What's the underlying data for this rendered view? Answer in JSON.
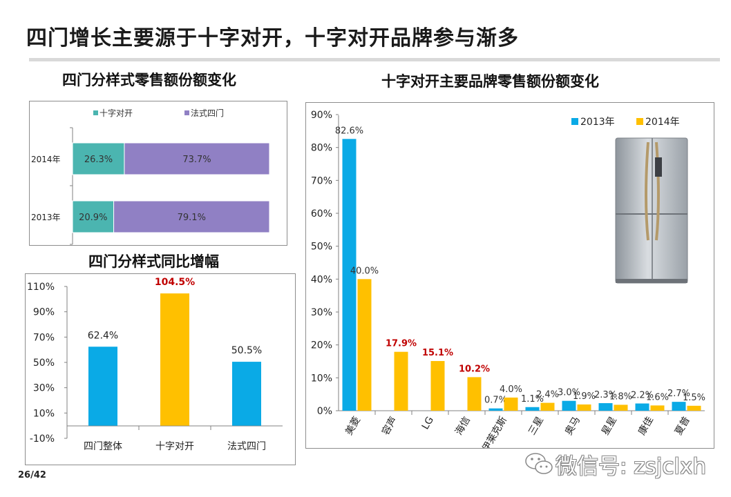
{
  "title": "四门增长主要源于十字对开，十字对开品牌参与渐多",
  "page_number": "26/42",
  "watermark": "微信号: zsjclxh",
  "colors": {
    "teal": "#4bb5b0",
    "purple": "#9080c4",
    "blue": "#0aaae6",
    "orange": "#ffc000",
    "highlight": "#c00000"
  },
  "chart_data": [
    {
      "type": "bar",
      "orientation": "horizontal-stacked-100",
      "title": "四门分样式零售额份额变化",
      "categories": [
        "2014年",
        "2013年"
      ],
      "series": [
        {
          "name": "十字对开",
          "values": [
            26.3,
            20.9
          ],
          "labels": [
            "26.3%",
            "20.9%"
          ]
        },
        {
          "name": "法式四门",
          "values": [
            73.7,
            79.1
          ],
          "labels": [
            "73.7%",
            "79.1%"
          ]
        }
      ],
      "legend": "top"
    },
    {
      "type": "bar",
      "title": "四门分样式同比增幅",
      "categories": [
        "四门整体",
        "十字对开",
        "法式四门"
      ],
      "values": [
        62.4,
        104.5,
        50.5
      ],
      "labels": [
        "62.4%",
        "104.5%",
        "50.5%"
      ],
      "highlight_index": 1,
      "ylim": [
        -10,
        110
      ],
      "yticks": [
        "110%",
        "90%",
        "70%",
        "50%",
        "30%",
        "10%",
        "-10%"
      ]
    },
    {
      "type": "bar",
      "title": "十字对开主要品牌零售额份额变化",
      "categories": [
        "美菱",
        "容声",
        "LG",
        "海信",
        "伊莱克斯",
        "三星",
        "奥马",
        "星星",
        "康佳",
        "夏普"
      ],
      "series": [
        {
          "name": "2013年",
          "values": [
            82.6,
            0,
            0,
            0,
            0.7,
            1.1,
            3.0,
            2.3,
            2.2,
            2.7
          ],
          "labels": [
            "82.6%",
            "",
            "",
            "",
            "0.7%",
            "1.1%",
            "3.0%",
            "2.3%",
            "2.2%",
            "2.7%"
          ]
        },
        {
          "name": "2014年",
          "values": [
            40.0,
            17.9,
            15.1,
            10.2,
            4.0,
            2.4,
            1.9,
            1.8,
            1.6,
            1.5
          ],
          "labels": [
            "40.0%",
            "17.9%",
            "15.1%",
            "10.2%",
            "4.0%",
            "2.4%",
            "1.9%",
            "1.8%",
            "1.6%",
            "1.5%"
          ]
        }
      ],
      "highlight_labels": [
        "17.9%",
        "15.1%",
        "10.2%"
      ],
      "ylim": [
        0,
        90
      ],
      "yticks": [
        "90%",
        "80%",
        "70%",
        "60%",
        "50%",
        "40%",
        "30%",
        "20%",
        "10%",
        "0%"
      ],
      "legend": "top-right"
    }
  ]
}
